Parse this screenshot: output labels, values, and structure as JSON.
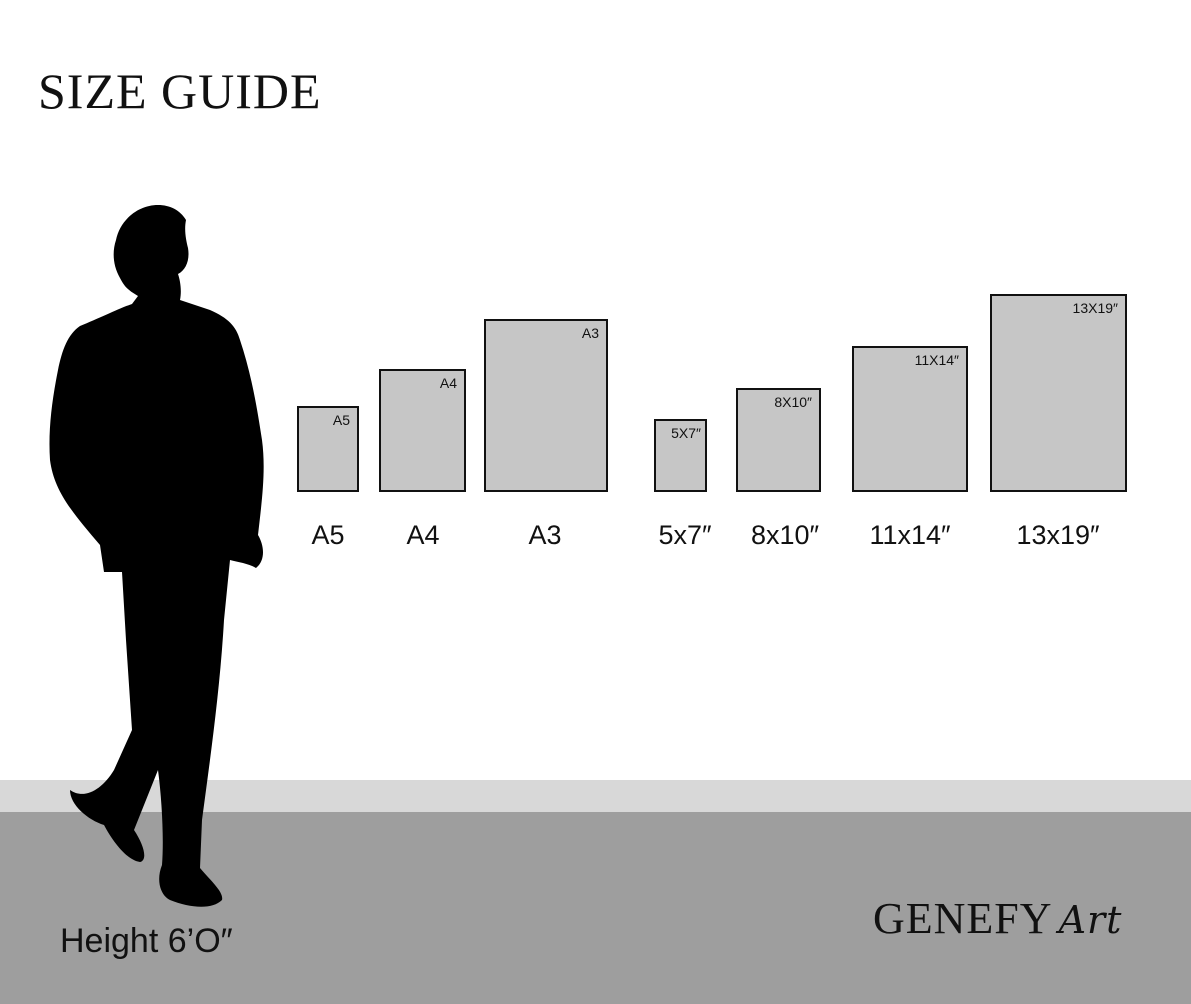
{
  "title": "SIZE GUIDE",
  "frames": [
    {
      "tag": "A5",
      "label": "A5"
    },
    {
      "tag": "A4",
      "label": "A4"
    },
    {
      "tag": "A3",
      "label": "A3"
    },
    {
      "tag": "5X7″",
      "label": "5x7″"
    },
    {
      "tag": "8X10″",
      "label": "8x10″"
    },
    {
      "tag": "11X14″",
      "label": "11x14″"
    },
    {
      "tag": "13X19″",
      "label": "13x19″"
    }
  ],
  "person": {
    "height_label": "Height 6’O″",
    "icon": "man-silhouette-icon"
  },
  "logo": {
    "name": "GENEFY",
    "script": "Art"
  },
  "colors": {
    "frame_fill": "#c6c6c6",
    "floor": "#9e9e9e",
    "floor_edge": "#d8d8d8"
  }
}
